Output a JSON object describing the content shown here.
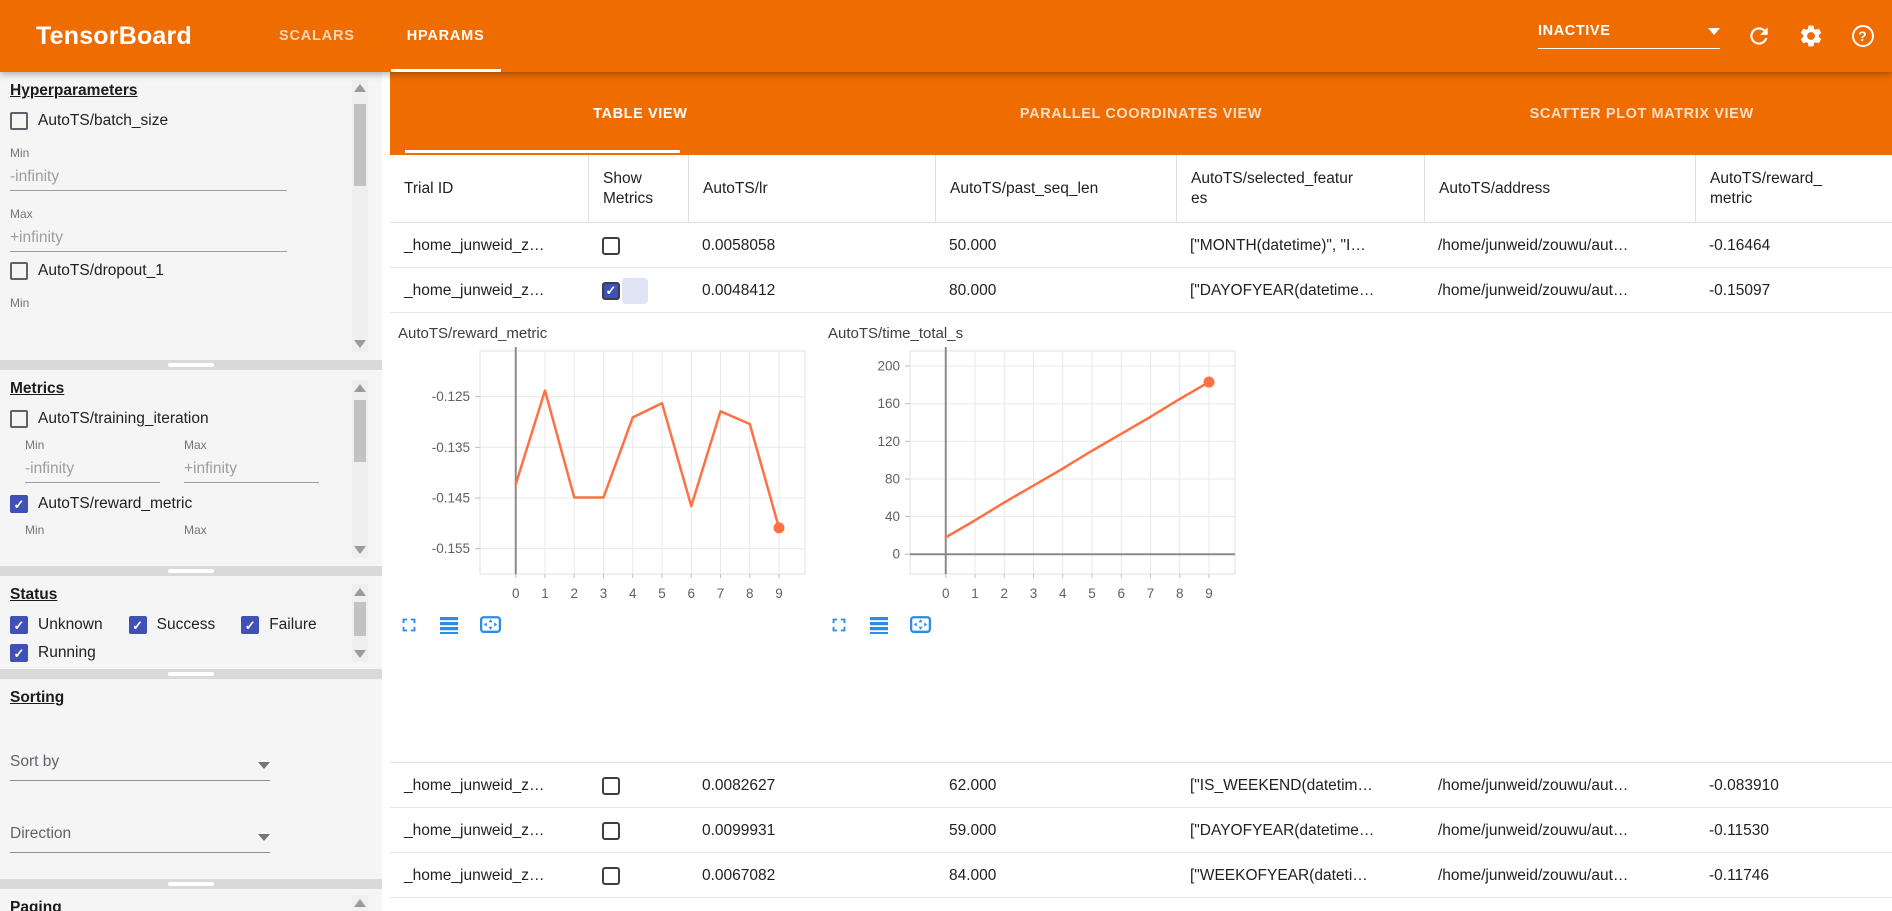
{
  "header": {
    "title": "TensorBoard",
    "nav_tabs": [
      {
        "label": "SCALARS",
        "active": false
      },
      {
        "label": "HPARAMS",
        "active": true
      }
    ],
    "run_status_dropdown": {
      "value": "INACTIVE"
    },
    "icons": [
      "refresh-icon",
      "gear-icon",
      "help-icon"
    ]
  },
  "sidebar": {
    "hyperparameters": {
      "heading": "Hyperparameters",
      "items": [
        {
          "label": "AutoTS/batch_size",
          "checked": false,
          "min": {
            "label": "Min",
            "value": "-infinity"
          },
          "max": {
            "label": "Max",
            "value": "+infinity"
          }
        },
        {
          "label": "AutoTS/dropout_1",
          "checked": false,
          "min": {
            "label": "Min"
          }
        }
      ]
    },
    "metrics": {
      "heading": "Metrics",
      "items": [
        {
          "label": "AutoTS/training_iteration",
          "checked": false,
          "min": {
            "label": "Min",
            "value": "-infinity"
          },
          "max": {
            "label": "Max",
            "value": "+infinity"
          }
        },
        {
          "label": "AutoTS/reward_metric",
          "checked": true,
          "min": {
            "label": "Min"
          },
          "max": {
            "label": "Max"
          }
        }
      ]
    },
    "status": {
      "heading": "Status",
      "items": [
        {
          "label": "Unknown",
          "checked": true
        },
        {
          "label": "Success",
          "checked": true
        },
        {
          "label": "Failure",
          "checked": true
        },
        {
          "label": "Running",
          "checked": true
        }
      ]
    },
    "sorting": {
      "heading": "Sorting",
      "sort_by": {
        "label": "Sort by"
      },
      "direction": {
        "label": "Direction"
      }
    },
    "paging": {
      "heading": "Paging"
    }
  },
  "main": {
    "view_tabs": [
      {
        "label": "TABLE VIEW",
        "active": true
      },
      {
        "label": "PARALLEL COORDINATES VIEW",
        "active": false
      },
      {
        "label": "SCATTER PLOT MATRIX VIEW",
        "active": false
      }
    ],
    "table": {
      "columns": [
        "Trial ID",
        "Show Metrics",
        "AutoTS/lr",
        "AutoTS/past_seq_len",
        "AutoTS/selected_features",
        "AutoTS/address",
        "AutoTS/reward_metric"
      ],
      "rows_above_charts": [
        {
          "trial_id": "_home_junweid_z…",
          "show_metrics": false,
          "lr": "0.0058058",
          "past_seq_len": "50.000",
          "selected_features": "[\"MONTH(datetime)\", \"I…",
          "address": "/home/junweid/zouwu/aut…",
          "reward_metric": "-0.16464"
        },
        {
          "trial_id": "_home_junweid_z…",
          "show_metrics": true,
          "lr": "0.0048412",
          "past_seq_len": "80.000",
          "selected_features": "[\"DAYOFYEAR(datetime…",
          "address": "/home/junweid/zouwu/aut…",
          "reward_metric": "-0.15097"
        }
      ],
      "rows_below_charts": [
        {
          "trial_id": "_home_junweid_z…",
          "show_metrics": false,
          "lr": "0.0082627",
          "past_seq_len": "62.000",
          "selected_features": "[\"IS_WEEKEND(datetim…",
          "address": "/home/junweid/zouwu/aut…",
          "reward_metric": "-0.083910"
        },
        {
          "trial_id": "_home_junweid_z…",
          "show_metrics": false,
          "lr": "0.0099931",
          "past_seq_len": "59.000",
          "selected_features": "[\"DAYOFYEAR(datetime…",
          "address": "/home/junweid/zouwu/aut…",
          "reward_metric": "-0.11530"
        },
        {
          "trial_id": "_home_junweid_z…",
          "show_metrics": false,
          "lr": "0.0067082",
          "past_seq_len": "84.000",
          "selected_features": "[\"WEEKOFYEAR(dateti…",
          "address": "/home/junweid/zouwu/aut…",
          "reward_metric": "-0.11746"
        }
      ]
    },
    "chart_toolbar_icons": [
      "fullscreen-icon",
      "list-icon",
      "fit-to-screen-icon"
    ]
  },
  "chart_data": [
    {
      "type": "line",
      "title": "AutoTS/reward_metric",
      "x": [
        0,
        1,
        2,
        3,
        4,
        5,
        6,
        7,
        8,
        9
      ],
      "values": [
        -0.1423,
        -0.1238,
        -0.1449,
        -0.1449,
        -0.1291,
        -0.1263,
        -0.1466,
        -0.1279,
        -0.1304,
        -0.1509
      ],
      "xticks": [
        0,
        1,
        2,
        3,
        4,
        5,
        6,
        7,
        8,
        9
      ],
      "yticks": [
        -0.125,
        -0.135,
        -0.145,
        -0.155
      ],
      "ytick_labels": [
        "-0.125",
        "-0.135",
        "-0.145",
        "-0.155"
      ],
      "ylim": [
        -0.16,
        -0.116
      ],
      "xlabel": "",
      "ylabel": "",
      "grid": true,
      "line_color": "#ff7043",
      "last_point_dot": true
    },
    {
      "type": "line",
      "title": "AutoTS/time_total_s",
      "x": [
        0,
        1,
        2,
        3,
        4,
        5,
        6,
        7,
        8,
        9
      ],
      "values": [
        18,
        36,
        55,
        73,
        91,
        110,
        128,
        146,
        165,
        183
      ],
      "xticks": [
        0,
        1,
        2,
        3,
        4,
        5,
        6,
        7,
        8,
        9
      ],
      "yticks": [
        0,
        40,
        80,
        120,
        160,
        200
      ],
      "ytick_labels": [
        "0",
        "40",
        "80",
        "120",
        "160",
        "200"
      ],
      "ylim": [
        -21,
        216
      ],
      "xlabel": "",
      "ylabel": "",
      "grid": true,
      "line_color": "#ff7043",
      "last_point_dot": true
    }
  ],
  "colors": {
    "header_orange": "#ef6c00",
    "checkbox_blue": "#3f51b5",
    "chart_line": "#ff7043",
    "toolbar_icon_blue": "#2d8cea"
  }
}
